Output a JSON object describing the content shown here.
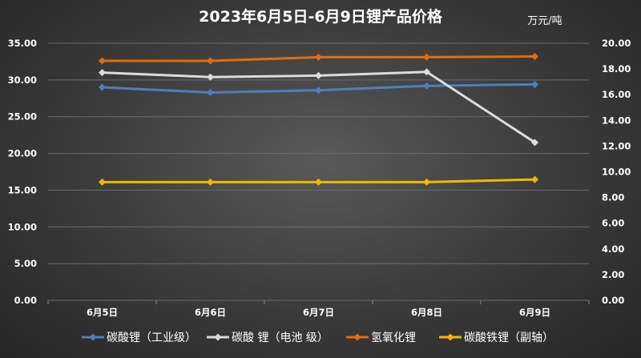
{
  "chart_data": {
    "type": "line",
    "title": "2023年6月5日-6月9日锂产品价格",
    "unit": "万元/吨",
    "categories": [
      "6月5日",
      "6月6日",
      "6月7日",
      "6月8日",
      "6月9日"
    ],
    "y_left": {
      "ylim": [
        0,
        35
      ],
      "ticks": [
        "0.00",
        "5.00",
        "10.00",
        "15.00",
        "20.00",
        "25.00",
        "30.00",
        "35.00"
      ]
    },
    "y_right": {
      "ylim": [
        0,
        20
      ],
      "ticks": [
        "0.00",
        "2.00",
        "4.00",
        "6.00",
        "8.00",
        "10.00",
        "12.00",
        "14.00",
        "16.00",
        "18.00",
        "20.00"
      ]
    },
    "grid": "horizontal",
    "legend_position": "bottom",
    "series": [
      {
        "name": "碳酸锂（工业级）",
        "axis": "left",
        "color": "#4f7ec0",
        "values": [
          29.0,
          28.3,
          28.6,
          29.2,
          29.4
        ]
      },
      {
        "name": "碳酸 锂（电池 级）",
        "axis": "left",
        "color": "#dcdcdc",
        "values": [
          31.0,
          30.4,
          30.6,
          31.1,
          21.5
        ]
      },
      {
        "name": "氢氧化锂",
        "axis": "left",
        "color": "#e36c09",
        "values": [
          32.6,
          32.6,
          33.1,
          33.1,
          33.2
        ]
      },
      {
        "name": "碳酸铁锂（副轴）",
        "axis": "right",
        "color": "#f5b800",
        "values": [
          9.2,
          9.2,
          9.2,
          9.2,
          9.4
        ]
      }
    ]
  }
}
